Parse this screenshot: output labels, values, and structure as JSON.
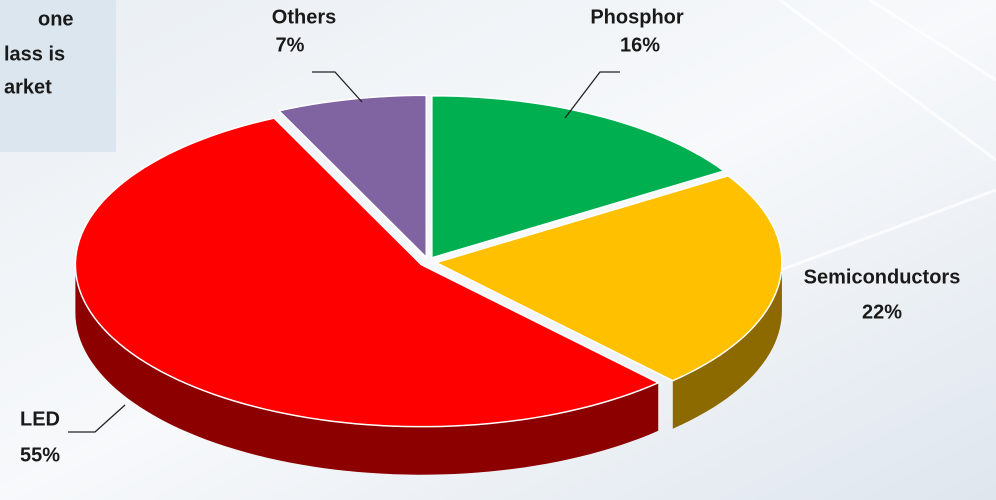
{
  "chart_data": {
    "type": "pie",
    "annotations": [
      "one",
      "lass is",
      "arket"
    ],
    "categories": [
      "Phosphor",
      "Semiconductors",
      "LED",
      "Others"
    ],
    "values": [
      16,
      22,
      55,
      7
    ],
    "value_labels": [
      "16%",
      "22%",
      "55%",
      "7%"
    ],
    "colors": [
      "#00b050",
      "#ffc000",
      "#ff0000",
      "#8064a2"
    ]
  }
}
